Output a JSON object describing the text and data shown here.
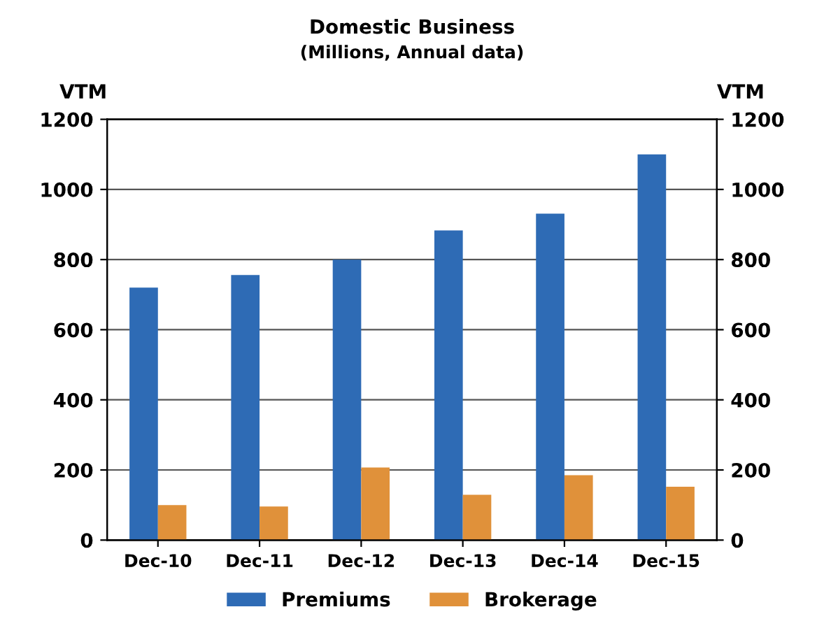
{
  "chart_data": {
    "type": "bar",
    "title": "Domestic Business",
    "subtitle": "(Millions, Annual data)",
    "ylabel": "VTM",
    "y2label": "VTM",
    "categories": [
      "Dec-10",
      "Dec-11",
      "Dec-12",
      "Dec-13",
      "Dec-14",
      "Dec-15"
    ],
    "series": [
      {
        "name": "Premiums",
        "color": "#2e6bb5",
        "values": [
          720,
          756,
          800,
          883,
          931,
          1100
        ]
      },
      {
        "name": "Brokerage",
        "color": "#e0913a",
        "values": [
          100,
          96,
          207,
          129,
          185,
          152
        ]
      }
    ],
    "ylim": [
      0,
      1200
    ],
    "yticks": [
      0,
      200,
      400,
      600,
      800,
      1000,
      1200
    ],
    "y2lim": [
      0,
      1200
    ],
    "y2ticks": [
      0,
      200,
      400,
      600,
      800,
      1000,
      1200
    ],
    "grid": "y",
    "legend": "bottom"
  }
}
